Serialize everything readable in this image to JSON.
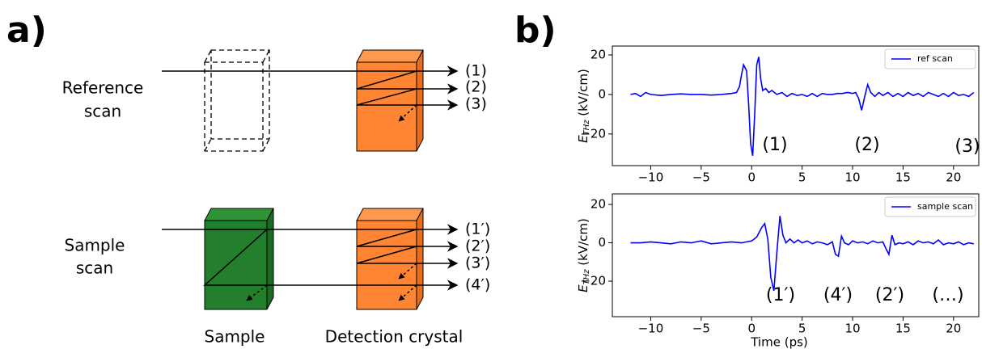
{
  "panel_a": {
    "label": "a)",
    "reference_label": [
      "Reference",
      "scan"
    ],
    "sample_label": [
      "Sample",
      "scan"
    ],
    "reference_outputs": [
      "(1)",
      "(2)",
      "(3)"
    ],
    "sample_outputs": [
      "(1′)",
      "(2′)",
      "(3′)",
      "(4′)"
    ],
    "sample_caption": "Sample",
    "crystal_caption": "Detection crystal"
  },
  "panel_b": {
    "label": "b)"
  },
  "chart_data": [
    {
      "type": "line",
      "y_label": "E",
      "y_label_subscript": "THz",
      "y_label_unit": " (kV/cm)",
      "xlim": [
        -13.8,
        22.5
      ],
      "ylim": [
        -36,
        24.5
      ],
      "xticks": [
        {
          "value": -10,
          "label": "−10"
        },
        {
          "value": -5,
          "label": "−5"
        },
        0,
        5,
        10,
        15,
        20
      ],
      "yticks": [
        {
          "value": -20,
          "label": "−20"
        },
        0,
        20
      ],
      "legend": "upper right",
      "annotations": [
        "(1)",
        "(2)",
        "(3)"
      ],
      "x": [
        -12,
        -11.5,
        -11,
        -10.5,
        -10,
        -9,
        -8,
        -7,
        -6,
        -5,
        -4,
        -3,
        -2,
        -1.5,
        -1.2,
        -1,
        -0.8,
        -0.5,
        -0.3,
        -0.1,
        0.1,
        0.3,
        0.5,
        0.7,
        0.9,
        1.1,
        1.4,
        1.7,
        2,
        2.5,
        3,
        3.5,
        4,
        4.5,
        5,
        5.5,
        6,
        6.5,
        7,
        7.5,
        8,
        8.5,
        9,
        9.5,
        10,
        10.3,
        10.6,
        10.9,
        11.2,
        11.5,
        11.8,
        12.2,
        12.6,
        13,
        13.5,
        14,
        14.5,
        15,
        15.5,
        16,
        16.5,
        17,
        17.5,
        18,
        18.5,
        19,
        19.5,
        20,
        20.5,
        21,
        21.5,
        22
      ],
      "series": [
        {
          "name": "ref scan",
          "color": "#0000ff",
          "values": [
            0,
            0.5,
            -1,
            1,
            0,
            -0.5,
            0,
            0.3,
            0,
            0,
            -0.3,
            0,
            0.5,
            1,
            4,
            10,
            15,
            12,
            -5,
            -25,
            -31,
            -10,
            15,
            19,
            8,
            2,
            3,
            1,
            2,
            0,
            1,
            -1,
            0.5,
            -0.5,
            0,
            -1,
            0.5,
            -1,
            0.5,
            0,
            0,
            0.5,
            0.5,
            1,
            0.5,
            1,
            -2,
            -8,
            -1,
            5,
            1,
            -1,
            1,
            -0.5,
            1,
            -1,
            0.5,
            -1,
            1,
            -0.5,
            0.5,
            -1,
            1,
            0,
            -1,
            0.5,
            -1,
            1,
            -0.5,
            0,
            -1,
            1
          ]
        }
      ]
    },
    {
      "type": "line",
      "y_label": "E",
      "y_label_subscript": "THz",
      "y_label_unit": " (kV/cm)",
      "x_label": "Time (ps)",
      "xlim": [
        -13.8,
        22.5
      ],
      "ylim": [
        -38.5,
        25.5
      ],
      "xticks": [
        {
          "value": -10,
          "label": "−10"
        },
        {
          "value": -5,
          "label": "−5"
        },
        0,
        5,
        10,
        15,
        20
      ],
      "yticks": [
        {
          "value": -20,
          "label": "−20"
        },
        0,
        20
      ],
      "legend": "upper right",
      "annotations": [
        "(1′)",
        "(4′)",
        "(2′)",
        "(…)"
      ],
      "x": [
        -12,
        -11,
        -10,
        -9,
        -8,
        -7,
        -6,
        -5,
        -4,
        -3,
        -2,
        -1,
        -0.5,
        0,
        0.5,
        1,
        1.3,
        1.6,
        1.9,
        2.2,
        2.5,
        2.8,
        3.1,
        3.4,
        3.8,
        4.2,
        4.6,
        5,
        5.5,
        6,
        6.5,
        7,
        7.5,
        8,
        8.3,
        8.6,
        8.9,
        9.2,
        9.6,
        10,
        10.5,
        11,
        11.5,
        12,
        12.5,
        13,
        13.3,
        13.6,
        13.9,
        14.2,
        14.6,
        15,
        15.5,
        16,
        16.5,
        17,
        17.5,
        18,
        18.5,
        19,
        19.5,
        20,
        20.5,
        21,
        21.5,
        22
      ],
      "series": [
        {
          "name": "sample scan",
          "color": "#0000ff",
          "values": [
            0,
            0,
            0.5,
            0,
            -0.5,
            0.5,
            0,
            1,
            -0.5,
            0,
            0.5,
            0,
            0.5,
            1,
            3,
            8,
            10,
            2,
            -18,
            -25,
            -5,
            14,
            4,
            0,
            2,
            0,
            1.5,
            0,
            1,
            -0.5,
            0.5,
            0,
            -1,
            0.5,
            -6,
            -7,
            3.5,
            0,
            -1,
            1,
            0,
            0.5,
            -0.5,
            1,
            0,
            0.5,
            -3,
            -6,
            4,
            -1,
            0,
            -0.5,
            0.5,
            -1,
            1,
            0,
            0.5,
            -0.5,
            1.5,
            -1,
            0,
            -0.5,
            0.5,
            -1,
            0,
            -0.5
          ]
        }
      ]
    }
  ]
}
